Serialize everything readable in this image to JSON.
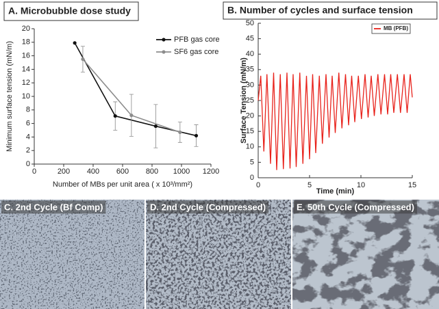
{
  "chart_data": [
    {
      "type": "line",
      "title": "A. Microbubble dose study",
      "x_label": "Number of MBs per unit area ( x 10³/mm²)",
      "y_label": "Minimum surface tension (mN/m)",
      "xlim": [
        0,
        1200
      ],
      "xticks": [
        0,
        200,
        400,
        600,
        800,
        1000,
        1200
      ],
      "ylim": [
        0,
        20
      ],
      "yticks": [
        0,
        2,
        4,
        6,
        8,
        10,
        12,
        14,
        16,
        18,
        20
      ],
      "legend": "upper right",
      "marker": "circle",
      "series": [
        {
          "name": "PFB gas core",
          "color": "#111111",
          "x": [
            275,
            550,
            825,
            1100
          ],
          "values": [
            17.9,
            7.1,
            5.6,
            4.2
          ],
          "errors": [
            null,
            2.1,
            3.2,
            1.6
          ]
        },
        {
          "name": "SF6 gas core",
          "color": "#8c8c8c",
          "x": [
            330,
            660,
            990
          ],
          "values": [
            15.5,
            7.2,
            4.7
          ],
          "errors": [
            1.9,
            3.1,
            1.5
          ]
        }
      ]
    },
    {
      "type": "line",
      "title": "B. Number of cycles and surface tension",
      "x_label": "Time (min)",
      "y_label": "Surface Tension (mN/m)",
      "xlim": [
        0,
        15
      ],
      "xticks": [
        0,
        5,
        10,
        15
      ],
      "ylim": [
        0,
        50
      ],
      "yticks": [
        0,
        5,
        10,
        15,
        20,
        25,
        30,
        35,
        40,
        45,
        50
      ],
      "legend": "upper right",
      "x": [
        0,
        0.25,
        0.55,
        0.85,
        1.2,
        1.5,
        1.8,
        2.15,
        2.45,
        2.8,
        3.1,
        3.4,
        3.7,
        4.05,
        4.35,
        4.7,
        5.0,
        5.3,
        5.6,
        5.95,
        6.25,
        6.6,
        6.9,
        7.2,
        7.5,
        7.85,
        8.15,
        8.5,
        8.8,
        9.1,
        9.4,
        9.75,
        10.05,
        10.4,
        10.7,
        11.0,
        11.3,
        11.65,
        11.95,
        12.3,
        12.6,
        12.9,
        13.2,
        13.55,
        13.85,
        14.2,
        14.5,
        14.8,
        15.0
      ],
      "series": [
        {
          "name": "MB (PFB)",
          "color": "#e8221b",
          "values": [
            25,
            33,
            8.5,
            33.5,
            4.5,
            34,
            2.5,
            33.5,
            2.8,
            34,
            3,
            33.5,
            3.5,
            34,
            4.5,
            33,
            6,
            33.5,
            8,
            33,
            11,
            33.5,
            13,
            33,
            14.5,
            34,
            16,
            33.5,
            17,
            33,
            18,
            33,
            19,
            33.5,
            19.5,
            33,
            20,
            33.5,
            20.5,
            33.5,
            20.5,
            33.5,
            21,
            33.5,
            21,
            33.5,
            21,
            33.5,
            26
          ]
        }
      ]
    }
  ],
  "panels": [
    {
      "label": "C. 2nd Cycle (Bf Comp)"
    },
    {
      "label": "D. 2nd Cycle (Compressed)"
    },
    {
      "label": "E. 50th Cycle (Compressed)"
    }
  ]
}
